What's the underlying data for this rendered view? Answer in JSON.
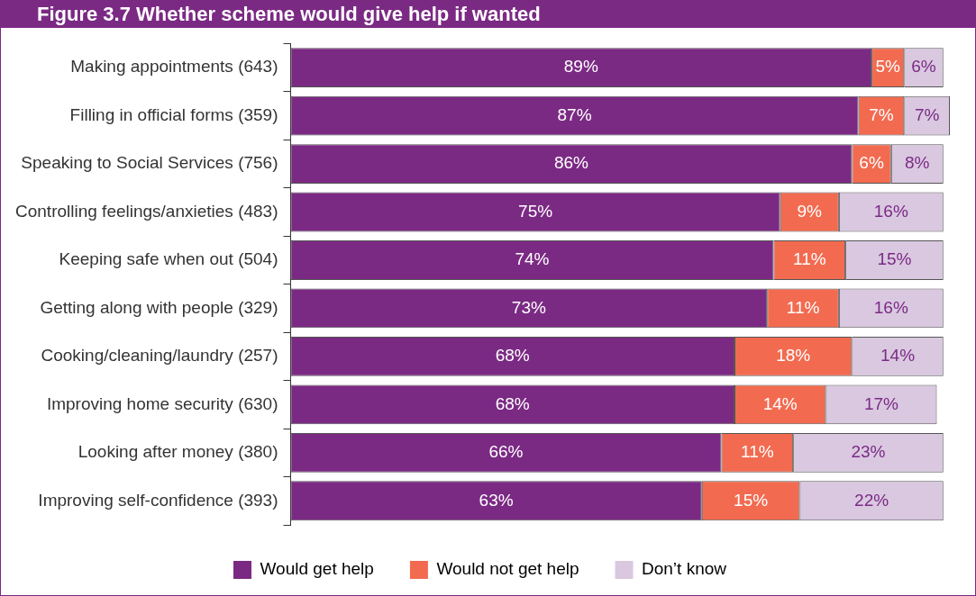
{
  "chart_data": {
    "type": "bar",
    "orientation": "horizontal",
    "stacked": true,
    "title": "Figure 3.7 Whether scheme would give help if wanted",
    "categories": [
      "Making appointments (643)",
      "Filling in official forms (359)",
      "Speaking to Social Services (756)",
      "Controlling feelings/anxieties (483)",
      "Keeping safe when out (504)",
      "Getting along with people (329)",
      "Cooking/cleaning/laundry (257)",
      "Improving home security (630)",
      "Looking after money (380)",
      "Improving self-confidence (393)"
    ],
    "series": [
      {
        "name": "Would get help",
        "color": "#7b2a84",
        "values": [
          89,
          87,
          86,
          75,
          74,
          73,
          68,
          68,
          66,
          63
        ],
        "value_labels": [
          "89%",
          "87%",
          "86%",
          "75%",
          "74%",
          "73%",
          "68%",
          "68%",
          "66%",
          "63%"
        ]
      },
      {
        "name": "Would not get help",
        "color": "#f26b50",
        "values": [
          5,
          7,
          6,
          9,
          11,
          11,
          18,
          14,
          11,
          15
        ],
        "value_labels": [
          "5%",
          "7%",
          "6%",
          "9%",
          "11%",
          "11%",
          "18%",
          "14%",
          "11%",
          "15%"
        ]
      },
      {
        "name": "Don’t know",
        "color": "#d9c8e0",
        "values": [
          6,
          7,
          8,
          16,
          15,
          16,
          14,
          17,
          23,
          22
        ],
        "value_labels": [
          "6%",
          "7%",
          "8%",
          "16%",
          "15%",
          "16%",
          "14%",
          "17%",
          "23%",
          "22%"
        ]
      }
    ],
    "legend": "bottom"
  }
}
